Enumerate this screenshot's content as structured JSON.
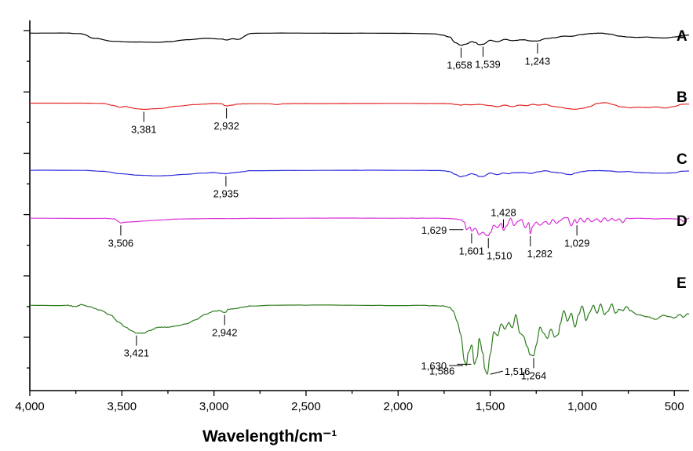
{
  "chart_data": {
    "type": "line",
    "xlabel": "Wavelength/cm⁻¹",
    "xlim": [
      4000,
      420
    ],
    "x_reversed": true,
    "x_ticks": [
      {
        "value": 4000,
        "label": "4,000"
      },
      {
        "value": 3500,
        "label": "3,500"
      },
      {
        "value": 3000,
        "label": "3,000"
      },
      {
        "value": 2500,
        "label": "2,500"
      },
      {
        "value": 2000,
        "label": "2,000"
      },
      {
        "value": 1500,
        "label": "1,500"
      },
      {
        "value": 1000,
        "label": "1,000"
      },
      {
        "value": 500,
        "label": "500"
      }
    ],
    "y_tick_labels_shown": false,
    "ylim": [
      0,
      100
    ],
    "grid": false,
    "series": [
      {
        "name": "A",
        "color": "#000000",
        "x": [
          4000,
          3800,
          3720,
          3650,
          3550,
          3450,
          3400,
          3350,
          3300,
          3250,
          3150,
          3050,
          2960,
          2930,
          2900,
          2870,
          2800,
          2600,
          2400,
          2200,
          2000,
          1800,
          1760,
          1720,
          1690,
          1658,
          1630,
          1600,
          1580,
          1560,
          1539,
          1500,
          1460,
          1420,
          1380,
          1320,
          1280,
          1243,
          1200,
          1150,
          1100,
          1060,
          1000,
          950,
          900,
          850,
          800,
          750,
          700,
          650,
          600,
          550,
          500,
          450,
          420
        ],
        "y": [
          95.0,
          95.0,
          94.0,
          87.0,
          82.5,
          81.5,
          81.5,
          81.2,
          81.0,
          82.0,
          85.0,
          87.0,
          86.0,
          84.5,
          86.5,
          85.5,
          94.5,
          95.0,
          95.0,
          95.0,
          94.6,
          93.8,
          92.0,
          89.0,
          80.5,
          76.5,
          78.5,
          82.0,
          80.5,
          77.5,
          78.0,
          84.0,
          82.0,
          85.5,
          83.5,
          85.0,
          83.0,
          83.0,
          86.5,
          88.0,
          90.5,
          90.0,
          93.0,
          94.5,
          95.0,
          93.5,
          90.5,
          89.0,
          88.5,
          89.0,
          88.0,
          87.5,
          89.0,
          91.5,
          92.0
        ]
      },
      {
        "name": "B",
        "color": "#e32a2a",
        "x": [
          4000,
          3800,
          3700,
          3600,
          3550,
          3510,
          3480,
          3450,
          3420,
          3381,
          3300,
          3200,
          3100,
          3050,
          3000,
          2960,
          2940,
          2932,
          2900,
          2870,
          2800,
          2700,
          2660,
          2620,
          2500,
          2300,
          2100,
          1900,
          1760,
          1720,
          1680,
          1658,
          1640,
          1600,
          1560,
          1500,
          1460,
          1420,
          1380,
          1340,
          1300,
          1270,
          1240,
          1200,
          1160,
          1120,
          1080,
          1040,
          1000,
          960,
          920,
          880,
          860,
          840,
          820,
          800,
          780,
          740,
          700,
          650,
          600,
          550,
          500,
          460,
          420
        ],
        "y": [
          80.0,
          80.0,
          80.0,
          79.5,
          76.0,
          72.5,
          74.0,
          71.5,
          69.5,
          68.5,
          70.0,
          74.5,
          77.5,
          78.5,
          79.5,
          79.0,
          75.5,
          75.0,
          76.5,
          78.5,
          79.0,
          79.0,
          77.5,
          79.0,
          79.5,
          79.5,
          79.5,
          79.5,
          79.5,
          79.0,
          77.5,
          76.5,
          77.5,
          77.0,
          78.0,
          75.5,
          73.5,
          76.5,
          73.5,
          76.5,
          75.5,
          78.0,
          76.5,
          78.0,
          74.0,
          72.5,
          70.0,
          68.5,
          70.5,
          73.5,
          79.5,
          81.0,
          80.5,
          78.0,
          76.5,
          73.5,
          73.0,
          71.5,
          72.5,
          72.0,
          73.0,
          71.0,
          74.0,
          78.0,
          78.5
        ]
      },
      {
        "name": "C",
        "color": "#2d2ddb",
        "x": [
          4000,
          3700,
          3600,
          3500,
          3400,
          3300,
          3250,
          3150,
          3050,
          3000,
          2960,
          2935,
          2900,
          2870,
          2800,
          2600,
          2400,
          2200,
          2000,
          1850,
          1760,
          1720,
          1690,
          1660,
          1640,
          1600,
          1580,
          1560,
          1540,
          1500,
          1460,
          1430,
          1400,
          1380,
          1320,
          1280,
          1240,
          1200,
          1160,
          1120,
          1080,
          1060,
          1040,
          1000,
          960,
          900,
          850,
          800,
          750,
          700,
          650,
          600,
          550,
          500,
          460,
          420
        ],
        "y": [
          60.0,
          60.0,
          58.5,
          54.5,
          52.0,
          51.0,
          51.5,
          53.5,
          55.5,
          56.5,
          55.0,
          54.5,
          56.0,
          57.0,
          59.5,
          60.0,
          60.0,
          60.0,
          60.0,
          60.0,
          59.5,
          58.0,
          53.5,
          49.5,
          51.0,
          54.5,
          53.0,
          50.0,
          50.0,
          55.5,
          53.0,
          55.5,
          54.5,
          56.0,
          56.5,
          55.0,
          57.5,
          59.5,
          57.0,
          56.0,
          53.5,
          53.0,
          55.5,
          58.0,
          59.5,
          59.5,
          59.0,
          57.5,
          58.0,
          56.5,
          56.0,
          55.5,
          55.5,
          56.0,
          58.5,
          59.0
        ]
      },
      {
        "name": "D",
        "color": "#d92ed9",
        "x": [
          4000,
          3600,
          3540,
          3520,
          3506,
          3490,
          3470,
          3430,
          3380,
          3300,
          3200,
          3100,
          3000,
          2900,
          2800,
          2600,
          2400,
          2200,
          2000,
          1850,
          1760,
          1720,
          1700,
          1680,
          1660,
          1640,
          1629,
          1610,
          1601,
          1580,
          1560,
          1540,
          1520,
          1510,
          1500,
          1480,
          1460,
          1440,
          1428,
          1410,
          1390,
          1370,
          1350,
          1330,
          1310,
          1290,
          1282,
          1270,
          1250,
          1230,
          1200,
          1180,
          1160,
          1140,
          1120,
          1100,
          1080,
          1060,
          1040,
          1029,
          1010,
          990,
          970,
          950,
          920,
          900,
          880,
          860,
          840,
          820,
          800,
          780,
          760,
          740,
          700,
          650,
          600,
          550,
          500,
          470,
          450,
          430,
          420
        ],
        "y": [
          80.0,
          79.8,
          79.0,
          75.0,
          72.5,
          73.5,
          74.0,
          74.5,
          75.5,
          77.0,
          78.5,
          79.0,
          79.5,
          79.5,
          80.0,
          80.0,
          80.0,
          80.0,
          80.0,
          80.0,
          79.8,
          79.5,
          79.0,
          78.5,
          77.5,
          74.0,
          62.0,
          66.0,
          60.0,
          64.0,
          54.0,
          58.0,
          53.0,
          52.5,
          57.0,
          69.0,
          65.0,
          72.0,
          61.0,
          68.0,
          80.0,
          68.5,
          75.0,
          78.0,
          65.0,
          73.0,
          55.5,
          67.0,
          74.0,
          69.0,
          75.0,
          70.0,
          78.0,
          72.0,
          76.0,
          80.5,
          81.0,
          68.0,
          78.0,
          72.5,
          80.0,
          74.0,
          80.0,
          74.5,
          79.0,
          74.0,
          80.5,
          75.5,
          79.5,
          76.0,
          79.0,
          73.0,
          80.0,
          79.5,
          80.0,
          79.5,
          79.0,
          79.5,
          79.0,
          78.5,
          75.0,
          79.0,
          80.0
        ]
      },
      {
        "name": "E",
        "color": "#2e7d1f",
        "x": [
          4000,
          3800,
          3750,
          3720,
          3680,
          3620,
          3560,
          3520,
          3480,
          3450,
          3421,
          3380,
          3350,
          3300,
          3250,
          3200,
          3150,
          3100,
          3050,
          3000,
          2970,
          2942,
          2920,
          2880,
          2850,
          2800,
          2700,
          2500,
          2300,
          2100,
          1900,
          1760,
          1720,
          1700,
          1680,
          1660,
          1640,
          1630,
          1620,
          1600,
          1586,
          1570,
          1560,
          1540,
          1530,
          1516,
          1500,
          1480,
          1460,
          1440,
          1420,
          1400,
          1380,
          1360,
          1340,
          1320,
          1300,
          1282,
          1264,
          1250,
          1230,
          1210,
          1190,
          1170,
          1150,
          1130,
          1120,
          1100,
          1080,
          1060,
          1040,
          1020,
          1000,
          980,
          960,
          940,
          920,
          900,
          880,
          860,
          840,
          820,
          800,
          780,
          760,
          740,
          700,
          650,
          600,
          560,
          530,
          500,
          470,
          450,
          430,
          420
        ],
        "y": [
          62.0,
          62.0,
          61.0,
          62.5,
          61.0,
          58.5,
          54.5,
          49.5,
          45.5,
          43.0,
          41.0,
          41.0,
          43.0,
          45.5,
          45.5,
          46.5,
          48.0,
          51.0,
          55.0,
          57.5,
          58.0,
          56.5,
          59.0,
          59.5,
          60.5,
          61.5,
          62.0,
          62.0,
          62.0,
          62.0,
          62.0,
          61.5,
          60.5,
          57.5,
          50.0,
          40.0,
          20.0,
          16.5,
          26.0,
          32.0,
          17.5,
          23.0,
          37.0,
          26.0,
          14.0,
          10.0,
          25.0,
          42.0,
          39.0,
          48.0,
          44.0,
          49.0,
          45.0,
          55.0,
          41.0,
          39.0,
          31.0,
          24.5,
          24.0,
          32.0,
          45.5,
          41.0,
          37.0,
          44.0,
          38.0,
          40.0,
          48.0,
          58.0,
          50.0,
          56.0,
          45.5,
          55.0,
          61.5,
          50.5,
          56.5,
          62.0,
          56.0,
          63.0,
          55.0,
          57.5,
          63.0,
          56.0,
          59.0,
          58.0,
          61.0,
          58.0,
          55.0,
          53.5,
          51.5,
          54.5,
          53.5,
          52.5,
          55.0,
          53.0,
          55.5,
          55.5
        ]
      }
    ],
    "annotations": [
      {
        "series": "A",
        "label": "1,243",
        "x": 1243
      },
      {
        "series": "A",
        "label": "1,539",
        "x": 1539
      },
      {
        "series": "A",
        "label": "1,658",
        "x": 1658
      },
      {
        "series": "B",
        "label": "2,932",
        "x": 2932
      },
      {
        "series": "B",
        "label": "3,381",
        "x": 3381
      },
      {
        "series": "C",
        "label": "2,935",
        "x": 2935
      },
      {
        "series": "D",
        "label": "3,506",
        "x": 3506
      },
      {
        "series": "D",
        "label": "1,629",
        "x": 1629
      },
      {
        "series": "D",
        "label": "1,601",
        "x": 1601
      },
      {
        "series": "D",
        "label": "1,428",
        "x": 1428
      },
      {
        "series": "D",
        "label": "1,510",
        "x": 1510
      },
      {
        "series": "D",
        "label": "1,282",
        "x": 1282
      },
      {
        "series": "D",
        "label": "1,029",
        "x": 1029
      },
      {
        "series": "E",
        "label": "2,942",
        "x": 2942
      },
      {
        "series": "E",
        "label": "3,421",
        "x": 3421
      },
      {
        "series": "E",
        "label": "1,264",
        "x": 1264
      },
      {
        "series": "E",
        "label": "1,630",
        "x": 1630
      },
      {
        "series": "E",
        "label": "1,586",
        "x": 1586
      },
      {
        "series": "E",
        "label": "1,516",
        "x": 1516
      }
    ]
  }
}
